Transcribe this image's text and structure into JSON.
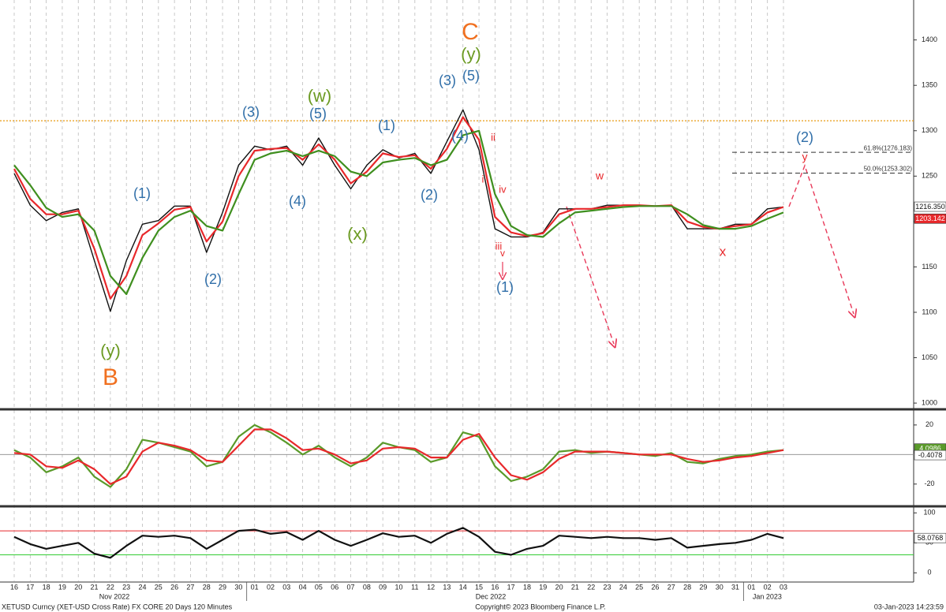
{
  "chart_data": [
    {
      "type": "line",
      "categories": [
        "16",
        "17",
        "18",
        "19",
        "20",
        "21",
        "22",
        "23",
        "24",
        "25",
        "26",
        "27",
        "28",
        "29",
        "30",
        "01",
        "02",
        "03",
        "04",
        "05",
        "06",
        "07",
        "08",
        "09",
        "10",
        "11",
        "12",
        "13",
        "14",
        "15",
        "16",
        "17",
        "18",
        "19",
        "20",
        "21",
        "22",
        "23",
        "24",
        "25",
        "26",
        "27",
        "28",
        "29",
        "30",
        "31",
        "01",
        "02",
        "03"
      ],
      "months": [
        "Nov 2022",
        "Dec 2022",
        "Jan 2023"
      ],
      "series": [
        {
          "name": "Price",
          "color": "#111111",
          "values": [
            1253,
            1218,
            1201,
            1210,
            1214,
            1157,
            1101,
            1157,
            1197,
            1201,
            1217,
            1217,
            1166,
            1210,
            1262,
            1283,
            1279,
            1283,
            1262,
            1292,
            1262,
            1236,
            1262,
            1279,
            1270,
            1275,
            1253,
            1288,
            1323,
            1279,
            1192,
            1183,
            1183,
            1188,
            1214,
            1214,
            1214,
            1218,
            1218,
            1218,
            1217,
            1218,
            1192,
            1192,
            1192,
            1197,
            1197,
            1214,
            1216
          ]
        },
        {
          "name": "Fast MA",
          "color": "#e8282b",
          "values": [
            1258,
            1225,
            1208,
            1208,
            1212,
            1170,
            1115,
            1140,
            1185,
            1198,
            1213,
            1216,
            1178,
            1200,
            1250,
            1278,
            1280,
            1281,
            1268,
            1285,
            1268,
            1242,
            1255,
            1275,
            1271,
            1273,
            1258,
            1280,
            1315,
            1290,
            1205,
            1188,
            1184,
            1187,
            1208,
            1214,
            1214,
            1216,
            1218,
            1218,
            1217,
            1218,
            1200,
            1194,
            1192,
            1195,
            1197,
            1210,
            1216
          ]
        },
        {
          "name": "Slow MA",
          "color": "#3f8f1f",
          "values": [
            1262,
            1240,
            1215,
            1205,
            1208,
            1190,
            1140,
            1120,
            1160,
            1190,
            1205,
            1212,
            1195,
            1190,
            1230,
            1268,
            1275,
            1278,
            1272,
            1278,
            1272,
            1255,
            1250,
            1265,
            1268,
            1270,
            1262,
            1268,
            1295,
            1300,
            1230,
            1195,
            1185,
            1183,
            1198,
            1210,
            1212,
            1214,
            1216,
            1217,
            1217,
            1217,
            1208,
            1196,
            1192,
            1192,
            1195,
            1203,
            1210
          ]
        }
      ],
      "ylim": [
        994,
        1444
      ],
      "yticks": [
        1000,
        1050,
        1100,
        1150,
        1200,
        1250,
        1300,
        1350,
        1400
      ],
      "resistance": 1311,
      "fib_levels": [
        {
          "value": 1276.183,
          "label": "61.8%(1276.183)"
        },
        {
          "value": 1253.302,
          "label": "50.0%(1253.302)"
        }
      ],
      "last_labels": [
        {
          "value": 1216.35,
          "label": "1216.350",
          "color": "#ffffff"
        },
        {
          "value": 1203.142,
          "label": "1203.142",
          "color": "#e8282b"
        }
      ],
      "annotations": [
        {
          "text": "C",
          "color": "#f07020"
        },
        {
          "text": "(y)",
          "color": "#6b9a22"
        },
        {
          "text": "(5)",
          "color": "#2f6ea8"
        },
        {
          "text": "(3)",
          "color": "#2f6ea8"
        },
        {
          "text": "(w)",
          "color": "#6b9a22"
        },
        {
          "text": "(5)",
          "color": "#2f6ea8"
        },
        {
          "text": "(3)",
          "color": "#2f6ea8"
        },
        {
          "text": "(1)",
          "color": "#2f6ea8"
        },
        {
          "text": "(1)",
          "color": "#2f6ea8"
        },
        {
          "text": "(4)",
          "color": "#2f6ea8"
        },
        {
          "text": "(2)",
          "color": "#2f6ea8"
        },
        {
          "text": "(4)",
          "color": "#2f6ea8"
        },
        {
          "text": "(x)",
          "color": "#6b9a22"
        },
        {
          "text": "(2)",
          "color": "#2f6ea8"
        },
        {
          "text": "(y)",
          "color": "#6b9a22"
        },
        {
          "text": "B",
          "color": "#f07020"
        },
        {
          "text": "ii",
          "color": "#e8282b"
        },
        {
          "text": "i",
          "color": "#e8282b"
        },
        {
          "text": "iv",
          "color": "#e8282b"
        },
        {
          "text": "iii",
          "color": "#e8282b"
        },
        {
          "text": "v",
          "color": "#e8282b"
        },
        {
          "text": "(1)",
          "color": "#2f6ea8"
        },
        {
          "text": "w",
          "color": "#e8282b"
        },
        {
          "text": "x",
          "color": "#e8282b"
        },
        {
          "text": "(2)",
          "color": "#2f6ea8"
        },
        {
          "text": "y",
          "color": "#e8282b"
        }
      ]
    },
    {
      "type": "line",
      "series": [
        {
          "name": "Oscillator",
          "color": "#5a9a2a",
          "values": [
            3,
            -2,
            -12,
            -8,
            -2,
            -15,
            -22,
            -10,
            10,
            8,
            5,
            2,
            -8,
            -5,
            12,
            20,
            15,
            8,
            0,
            6,
            -2,
            -8,
            -2,
            8,
            5,
            3,
            -5,
            -2,
            15,
            12,
            -8,
            -18,
            -15,
            -10,
            2,
            3,
            1,
            2,
            1,
            0,
            -1,
            1,
            -5,
            -6,
            -3,
            -1,
            0,
            2,
            3
          ]
        },
        {
          "name": "Signal",
          "color": "#e8282b",
          "values": [
            1,
            0,
            -8,
            -9,
            -4,
            -10,
            -20,
            -15,
            2,
            8,
            6,
            3,
            -4,
            -5,
            6,
            17,
            17,
            11,
            3,
            4,
            0,
            -6,
            -4,
            4,
            5,
            4,
            -2,
            -2,
            10,
            14,
            -2,
            -14,
            -17,
            -12,
            -3,
            2,
            2,
            2,
            1,
            0,
            0,
            0,
            -3,
            -5,
            -4,
            -2,
            -1,
            1,
            3
          ]
        }
      ],
      "ylim": [
        -34,
        29
      ],
      "yticks": [
        -20,
        20
      ],
      "last_labels": [
        {
          "value": 4.0986,
          "label": "4.0986",
          "color": "#5a9a2a"
        },
        {
          "value": -0.4078,
          "label": "-0.4078",
          "color": "#ffffff"
        }
      ]
    },
    {
      "type": "line",
      "series": [
        {
          "name": "RSI",
          "color": "#111111",
          "values": [
            60,
            48,
            40,
            45,
            50,
            32,
            25,
            45,
            62,
            60,
            62,
            58,
            40,
            55,
            70,
            72,
            65,
            68,
            55,
            70,
            55,
            45,
            55,
            66,
            60,
            62,
            50,
            65,
            75,
            60,
            35,
            30,
            40,
            45,
            62,
            60,
            58,
            60,
            58,
            58,
            55,
            58,
            42,
            45,
            48,
            50,
            55,
            65,
            58
          ]
        }
      ],
      "ylim": [
        -14,
        107
      ],
      "yticks": [
        0,
        50,
        100
      ],
      "bands": [
        {
          "value": 70,
          "color": "#e8282b"
        },
        {
          "value": 30,
          "color": "#33cc33"
        }
      ],
      "last_labels": [
        {
          "value": 58.0768,
          "label": "58.0768",
          "color": "#ffffff"
        }
      ]
    }
  ],
  "footer": {
    "source": "XETUSD Curncy (XET-USD Cross Rate) FX CORE 20 Days 120 Minutes",
    "copyright": "Copyright© 2023 Bloomberg Finance L.P.",
    "timestamp": "03-Jan-2023 14:23:59"
  }
}
